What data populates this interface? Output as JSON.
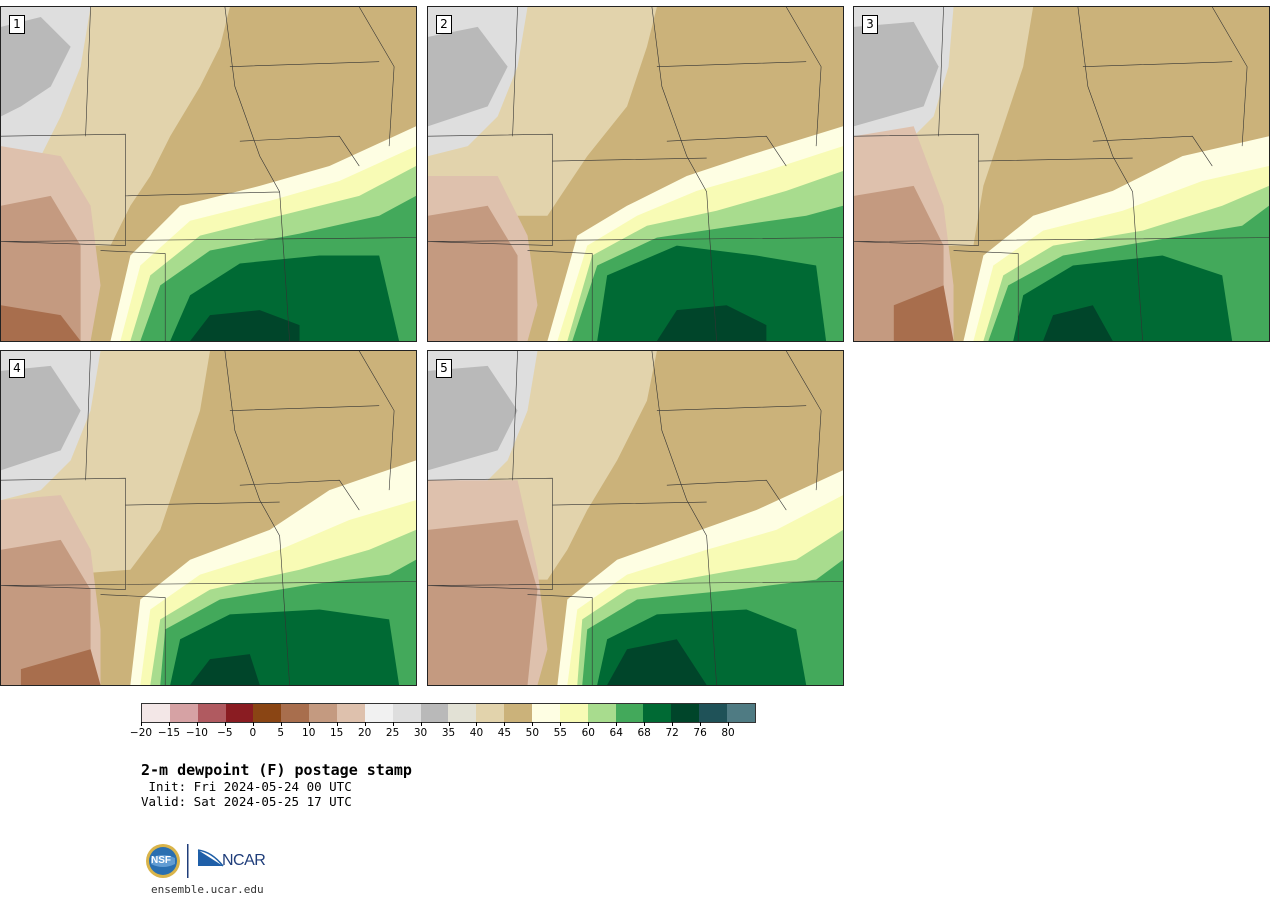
{
  "panels": [
    {
      "label": "1"
    },
    {
      "label": "2"
    },
    {
      "label": "3"
    },
    {
      "label": "4"
    },
    {
      "label": "5"
    }
  ],
  "legend": {
    "colors": [
      "#f3e7e7",
      "#d6a2a4",
      "#b05a60",
      "#8a1c22",
      "#8a4514",
      "#a86e4d",
      "#c49a80",
      "#dec1ad",
      "#f1f1f1",
      "#dedede",
      "#b9b9b9",
      "#e2e1d5",
      "#e2d3ac",
      "#cbb27a",
      "#fefee3",
      "#f8fbb5",
      "#a8dc8e",
      "#43a95b",
      "#006a34",
      "#00452a",
      "#1f5258",
      "#4f7b83"
    ],
    "ticks": [
      "−20",
      "−15",
      "−10",
      "−5",
      "0",
      "5",
      "10",
      "15",
      "20",
      "25",
      "30",
      "35",
      "40",
      "45",
      "50",
      "55",
      "60",
      "64",
      "68",
      "72",
      "76",
      "80"
    ]
  },
  "title": "2-m dewpoint (F) postage stamp",
  "init": " Init: Fri 2024-05-24 00 UTC",
  "valid": "Valid: Sat 2024-05-25 17 UTC",
  "logo": {
    "left": "NSF",
    "right": "NCAR"
  },
  "site": "ensemble.ucar.edu"
}
